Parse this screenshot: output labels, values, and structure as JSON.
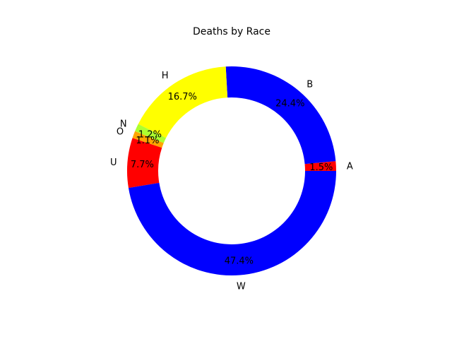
{
  "chart_data": {
    "type": "pie",
    "title": "Deaths by Race",
    "donut": true,
    "start_angle_deg": 0,
    "direction": "counterclockwise",
    "slices": [
      {
        "label": "A",
        "value": 1.5,
        "pct_label": "1.5%",
        "color": "#ff0000"
      },
      {
        "label": "B",
        "value": 24.4,
        "pct_label": "24.4%",
        "color": "#0000ff"
      },
      {
        "label": "H",
        "value": 16.7,
        "pct_label": "16.7%",
        "color": "#ffff00"
      },
      {
        "label": "N",
        "value": 1.2,
        "pct_label": "1.2%",
        "color": "#adff2f"
      },
      {
        "label": "O",
        "value": 1.1,
        "pct_label": "1.1%",
        "color": "#ffa500"
      },
      {
        "label": "U",
        "value": 7.7,
        "pct_label": "7.7%",
        "color": "#ff0000"
      },
      {
        "label": "W",
        "value": 47.4,
        "pct_label": "47.4%",
        "color": "#0000ff"
      }
    ]
  }
}
